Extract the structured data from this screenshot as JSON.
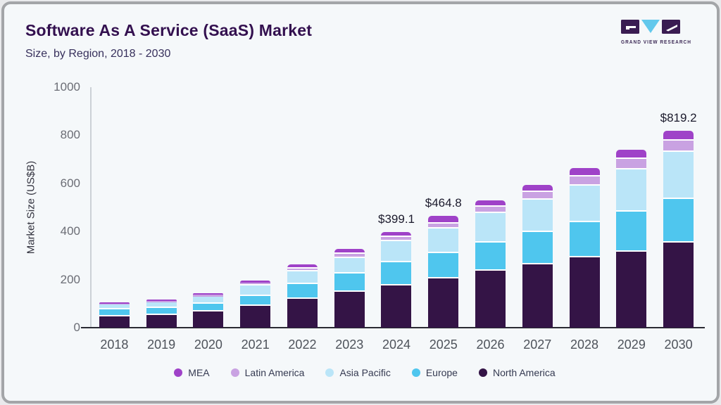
{
  "header": {
    "title": "Software As A Service (SaaS) Market",
    "subtitle": "Size, by Region, 2018 - 2030",
    "logo_text": "GRAND VIEW RESEARCH"
  },
  "colors": {
    "background": "#f5f8fa",
    "frame_border": "#a3a5a8",
    "title": "#33104f",
    "logo_dark": "#3a1c52",
    "logo_triangle": "#62c8ec",
    "segment_separator": "#ffffff"
  },
  "chart_data": {
    "type": "bar",
    "stacked": true,
    "title": "Software As A Service (SaaS) Market",
    "subtitle": "Size, by Region, 2018 - 2030",
    "xlabel": "",
    "ylabel": "Market Size (US$B)",
    "ylim": [
      0,
      1000
    ],
    "yticks": [
      "0",
      "200",
      "400",
      "600",
      "800",
      "1000"
    ],
    "grid": false,
    "legend_position": "bottom",
    "categories": [
      "2018",
      "2019",
      "2020",
      "2021",
      "2022",
      "2023",
      "2024",
      "2025",
      "2026",
      "2027",
      "2028",
      "2029",
      "2030"
    ],
    "series": [
      {
        "name": "North America",
        "color": "#341446",
        "values": [
          48,
          52,
          66,
          90,
          120,
          150,
          176,
          206,
          236,
          262,
          291,
          316,
          354
        ]
      },
      {
        "name": "Europe",
        "color": "#4fc6ee",
        "values": [
          28,
          31,
          34,
          43,
          61,
          75,
          97,
          104,
          117,
          135,
          149,
          167,
          181
        ]
      },
      {
        "name": "Asia Pacific",
        "color": "#bae5f8",
        "values": [
          20,
          22,
          28,
          42,
          53,
          65,
          86,
          101,
          124,
          136,
          151,
          175,
          196
        ]
      },
      {
        "name": "Latin America",
        "color": "#c9a2e2",
        "values": [
          4,
          6,
          9,
          12,
          13,
          17,
          19,
          21,
          25,
          31,
          38,
          44,
          47
        ]
      },
      {
        "name": "MEA",
        "color": "#9f42c8",
        "values": [
          4,
          5,
          7,
          10,
          15,
          20,
          21.1,
          32.8,
          28,
          31,
          35,
          38,
          41.2
        ]
      }
    ],
    "totals": [
      104,
      116,
      144,
      197,
      262,
      327,
      399.1,
      464.8,
      530,
      595,
      664,
      740,
      819.2
    ],
    "legend_order": [
      "MEA",
      "Latin America",
      "Asia Pacific",
      "Europe",
      "North America"
    ],
    "annotations": [
      {
        "category": "2024",
        "label": "$399.1"
      },
      {
        "category": "2025",
        "label": "$464.8"
      },
      {
        "category": "2030",
        "label": "$819.2"
      }
    ]
  }
}
